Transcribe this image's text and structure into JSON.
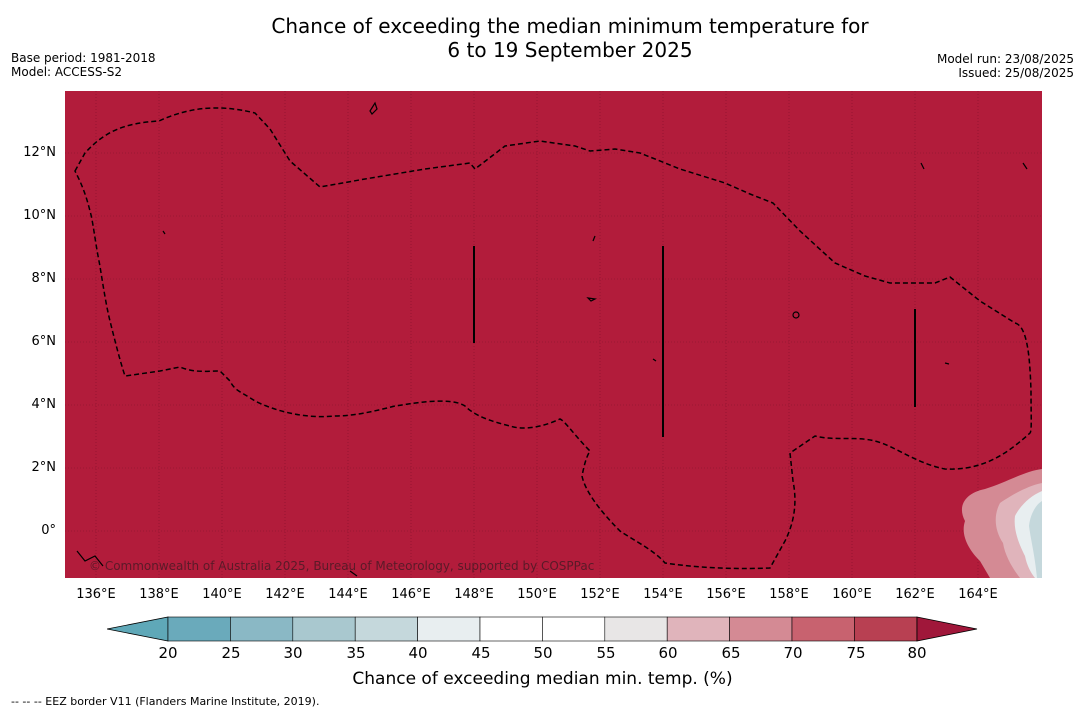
{
  "title_line1": "Chance of exceeding the median minimum temperature for",
  "title_line2": "6 to 19 September 2025",
  "base_period": "Base period: 1981-2018",
  "model": "Model: ACCESS-S2",
  "model_run": "Model run: 23/08/2025",
  "issued": "Issued: 25/08/2025",
  "y_ticks": [
    "12°N",
    "10°N",
    "8°N",
    "6°N",
    "4°N",
    "2°N",
    "0°"
  ],
  "x_ticks": [
    "136°E",
    "138°E",
    "140°E",
    "142°E",
    "144°E",
    "146°E",
    "148°E",
    "150°E",
    "152°E",
    "154°E",
    "156°E",
    "158°E",
    "160°E",
    "162°E",
    "164°E"
  ],
  "colorbar": {
    "labels": [
      "20",
      "25",
      "30",
      "35",
      "40",
      "45",
      "50",
      "55",
      "60",
      "65",
      "70",
      "75",
      "80"
    ],
    "colors": [
      "#5fa8b8",
      "#6aaabb",
      "#8ab8c5",
      "#a9c8cf",
      "#c5d8dc",
      "#e8eef0",
      "#ffffff",
      "#ffffff",
      "#e8e6e6",
      "#e0b4bb",
      "#d48a94",
      "#c8626f",
      "#b84052",
      "#a0173a"
    ],
    "title": "Chance of exceeding median min. temp. (%)"
  },
  "map_fill_color": "#b21c3b",
  "copyright": "© Commonwealth of Australia 2025, Bureau of Meteorology, supported by COSPPac",
  "footer": "--  --  -- EEZ border V11 (Flanders Marine Institute, 2019)."
}
